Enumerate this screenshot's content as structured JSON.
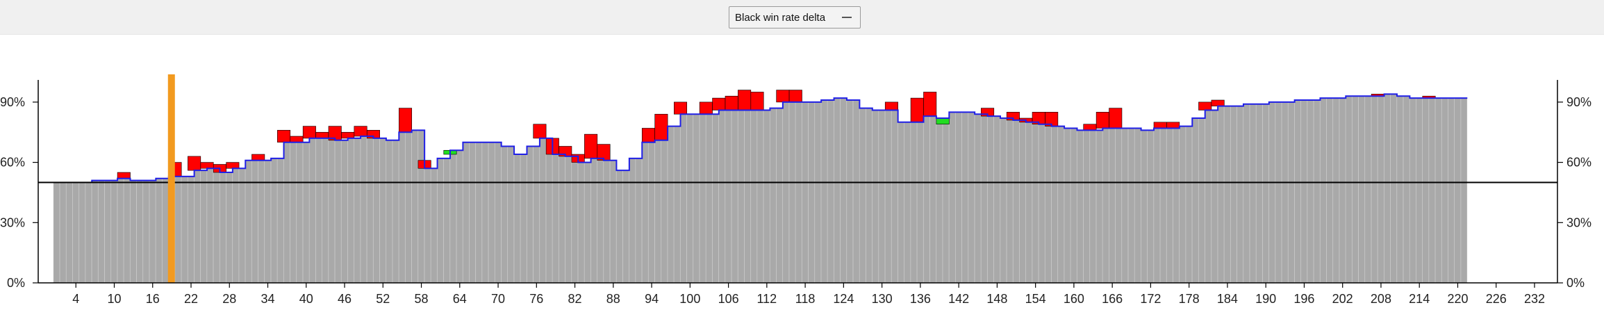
{
  "toolbar": {
    "selector_label": "Black win rate delta",
    "selector_icon": "dropdown-arrow-icon"
  },
  "colors": {
    "bar": "#a9a9a9",
    "line": "#1f1fe6",
    "loss": "#ff0000",
    "gain": "#22dd22",
    "marker": "#f29a1f",
    "axis": "#000000"
  },
  "chart_data": {
    "type": "bar",
    "title": "",
    "xlabel": "",
    "ylabel": "",
    "x_range": [
      1,
      235
    ],
    "ylim": [
      0,
      100
    ],
    "y_ticks": [
      "0%",
      "30%",
      "60%",
      "90%"
    ],
    "x_ticks": [
      4,
      10,
      16,
      22,
      28,
      34,
      40,
      46,
      52,
      58,
      64,
      70,
      76,
      82,
      88,
      94,
      100,
      106,
      112,
      118,
      124,
      130,
      136,
      142,
      148,
      154,
      160,
      166,
      172,
      178,
      184,
      190,
      196,
      202,
      208,
      214,
      220,
      226,
      232
    ],
    "reference_line": 50,
    "marker_move": 19,
    "series": [
      {
        "values": [
          50,
          50,
          50,
          50,
          50,
          50,
          51,
          51,
          51,
          51,
          52,
          52,
          51,
          51,
          51,
          51,
          52,
          52,
          53,
          53,
          53,
          53,
          56,
          56,
          57,
          57,
          55,
          55,
          57,
          57,
          61,
          61,
          61,
          61,
          62,
          62,
          70,
          70,
          70,
          70,
          72,
          72,
          72,
          72,
          71,
          71,
          72,
          72,
          73,
          73,
          72,
          72,
          71,
          71,
          75,
          75,
          76,
          76,
          57,
          57,
          62,
          62,
          66,
          66,
          70,
          70,
          70,
          70,
          70,
          70,
          68,
          68,
          64,
          64,
          68,
          68,
          72,
          72,
          64,
          64,
          63,
          63,
          60,
          60,
          62,
          62,
          61,
          61,
          56,
          56,
          62,
          62,
          70,
          70,
          71,
          71,
          78,
          78,
          84,
          84,
          84,
          84,
          84,
          84,
          86,
          86,
          86,
          86,
          86,
          86,
          86,
          86,
          87,
          87,
          90,
          90,
          90,
          90,
          90,
          90,
          91,
          91,
          92,
          92,
          91,
          91,
          87,
          87,
          86,
          86,
          86,
          86,
          80,
          80,
          80,
          80,
          83,
          83,
          82,
          82,
          85,
          85,
          85,
          85,
          84,
          84,
          83,
          83,
          82,
          82,
          81,
          81,
          80,
          80,
          79,
          79,
          78,
          78,
          77,
          77,
          76,
          76,
          76,
          76,
          77,
          77,
          77,
          77,
          77,
          77,
          76,
          76,
          77,
          77,
          77,
          77,
          78,
          78,
          82,
          82,
          86,
          86,
          88,
          88,
          88,
          88,
          89,
          89,
          89,
          89,
          90,
          90,
          90,
          90,
          91,
          91,
          91,
          91,
          92,
          92,
          92,
          92,
          93,
          93,
          93,
          93,
          93,
          93,
          94,
          94,
          93,
          93,
          92,
          92,
          92,
          92,
          92,
          92,
          92,
          92,
          92
        ],
        "deltas": [
          0,
          0,
          0,
          0,
          0,
          0,
          0,
          0,
          0,
          0,
          0,
          -3,
          0,
          0,
          0,
          0,
          0,
          0,
          0,
          -7,
          0,
          0,
          -7,
          0,
          -3,
          0,
          -4,
          0,
          -3,
          0,
          0,
          0,
          -3,
          0,
          0,
          0,
          -6,
          0,
          -3,
          0,
          -6,
          0,
          -3,
          0,
          -7,
          0,
          -3,
          0,
          -5,
          0,
          -4,
          0,
          0,
          0,
          0,
          -12,
          0,
          0,
          -4,
          0,
          0,
          0,
          2,
          0,
          0,
          0,
          0,
          0,
          0,
          0,
          0,
          0,
          0,
          0,
          0,
          0,
          -7,
          0,
          -8,
          0,
          -5,
          0,
          -4,
          0,
          -12,
          0,
          -8,
          0,
          0,
          0,
          0,
          0,
          0,
          -7,
          0,
          -13,
          0,
          0,
          -6,
          0,
          0,
          0,
          -6,
          0,
          -6,
          0,
          -7,
          0,
          -10,
          0,
          -9,
          0,
          0,
          0,
          -6,
          0,
          -6,
          0,
          0,
          0,
          0,
          0,
          0,
          0,
          0,
          0,
          0,
          0,
          0,
          0,
          0,
          -4,
          0,
          0,
          0,
          -12,
          0,
          -12,
          0,
          3,
          0,
          0,
          0,
          0,
          0,
          0,
          -4,
          0,
          0,
          0,
          -4,
          0,
          -2,
          0,
          -6,
          0,
          -7,
          0,
          0,
          0,
          0,
          0,
          -3,
          0,
          -8,
          0,
          -10,
          0,
          0,
          0,
          0,
          0,
          0,
          -3,
          0,
          -3,
          0,
          0,
          0,
          0,
          -4,
          0,
          -3,
          0,
          0,
          0,
          0,
          0,
          0,
          0,
          0,
          0,
          0,
          0,
          0,
          0,
          0,
          0,
          0,
          0,
          0,
          0,
          0,
          0,
          0,
          0,
          0,
          -1,
          0,
          0,
          0,
          0,
          0,
          0,
          0,
          -1,
          0,
          0,
          0,
          0,
          0,
          -1,
          0,
          0,
          0,
          0,
          0,
          0,
          0,
          0,
          0,
          0,
          0,
          0,
          0,
          0,
          0,
          0,
          0,
          0,
          0,
          0,
          0,
          0,
          0,
          0
        ]
      }
    ]
  }
}
